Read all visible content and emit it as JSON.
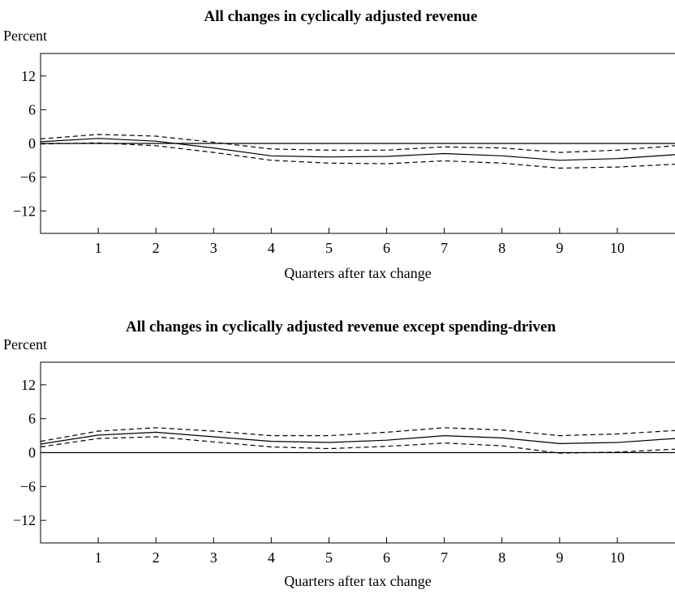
{
  "chart_data": [
    {
      "type": "line",
      "title": "All changes in cyclically adjusted revenue",
      "ylabel": "Percent",
      "xlabel": "Quarters after tax change",
      "xlim": [
        0,
        11
      ],
      "ylim": [
        -16,
        16
      ],
      "xticks": [
        "1",
        "2",
        "3",
        "4",
        "5",
        "6",
        "7",
        "8",
        "9",
        "10"
      ],
      "yticks": [
        "12",
        "6",
        "0",
        "−6",
        "−12"
      ],
      "x": [
        0,
        1,
        2,
        3,
        4,
        5,
        6,
        7,
        8,
        9,
        10,
        11
      ],
      "series": [
        {
          "style": "solid",
          "values": [
            0.3,
            0.9,
            0.4,
            -0.8,
            -2.2,
            -2.4,
            -2.3,
            -1.8,
            -2.2,
            -3.0,
            -2.7,
            -2.0
          ]
        },
        {
          "style": "dashed",
          "values": [
            0.8,
            1.6,
            1.3,
            0.2,
            -1.0,
            -1.2,
            -1.2,
            -0.6,
            -0.8,
            -1.6,
            -1.2,
            -0.4
          ]
        },
        {
          "style": "dashed",
          "values": [
            -0.1,
            0.1,
            -0.4,
            -1.6,
            -3.0,
            -3.5,
            -3.6,
            -3.1,
            -3.5,
            -4.4,
            -4.2,
            -3.7
          ]
        }
      ],
      "reference_line": 0,
      "grid": false,
      "legend": "none"
    },
    {
      "type": "line",
      "title": "All changes in cyclically adjusted revenue except spending-driven",
      "ylabel": "Percent",
      "xlabel": "Quarters after tax change",
      "xlim": [
        0,
        11
      ],
      "ylim": [
        -16,
        16
      ],
      "xticks": [
        "1",
        "2",
        "3",
        "4",
        "5",
        "6",
        "7",
        "8",
        "9",
        "10"
      ],
      "yticks": [
        "12",
        "6",
        "0",
        "−6",
        "−12"
      ],
      "x": [
        0,
        1,
        2,
        3,
        4,
        5,
        6,
        7,
        8,
        9,
        10,
        11
      ],
      "series": [
        {
          "style": "solid",
          "values": [
            1.5,
            3.1,
            3.6,
            2.8,
            2.0,
            1.8,
            2.2,
            3.0,
            2.6,
            1.6,
            1.8,
            2.5
          ]
        },
        {
          "style": "dashed",
          "values": [
            2.0,
            3.8,
            4.4,
            3.8,
            3.0,
            3.0,
            3.6,
            4.4,
            4.0,
            3.0,
            3.3,
            3.9
          ]
        },
        {
          "style": "dashed",
          "values": [
            1.0,
            2.5,
            2.8,
            1.9,
            1.0,
            0.7,
            1.1,
            1.7,
            1.2,
            -0.1,
            0.1,
            0.6
          ]
        }
      ],
      "reference_line": 0,
      "grid": false,
      "legend": "none"
    }
  ]
}
